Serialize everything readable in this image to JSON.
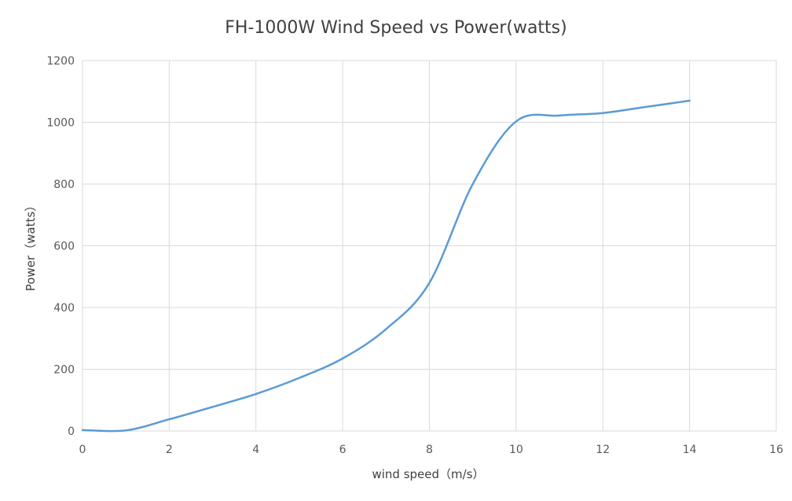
{
  "chart_data": {
    "type": "line",
    "title": "FH-1000W Wind Speed vs Power(watts)",
    "xlabel": "wind speed（m/s）",
    "ylabel": "Power（watts）",
    "xlim": [
      0,
      16
    ],
    "ylim": [
      0,
      1200
    ],
    "xticks": [
      0,
      2,
      4,
      6,
      8,
      10,
      12,
      14,
      16
    ],
    "yticks": [
      0,
      200,
      400,
      600,
      800,
      1000,
      1200
    ],
    "grid": true,
    "legend": "none",
    "series": [
      {
        "color": "#5b9bd5",
        "x": [
          0,
          1,
          2,
          3,
          4,
          5,
          6,
          7,
          8,
          9,
          10,
          11,
          12,
          13,
          14
        ],
        "y": [
          3,
          2,
          38,
          78,
          120,
          172,
          235,
          330,
          480,
          800,
          1003,
          1022,
          1030,
          1050,
          1070
        ]
      }
    ]
  }
}
